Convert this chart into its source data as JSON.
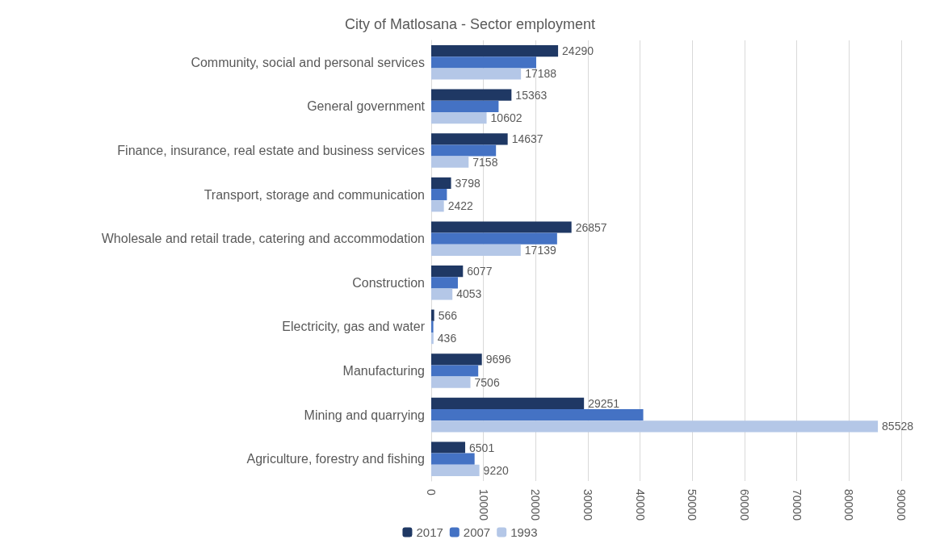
{
  "chart_data": {
    "type": "bar",
    "orientation": "horizontal",
    "title": "City of Matlosana - Sector employment",
    "categories": [
      "Community, social and personal services",
      "General government",
      "Finance, insurance, real estate and business services",
      "Transport, storage and communication",
      "Wholesale and retail trade, catering and accommodation",
      "Construction",
      "Electricity, gas and water",
      "Manufacturing",
      "Mining and quarrying",
      "Agriculture, forestry and fishing"
    ],
    "series": [
      {
        "name": "2017",
        "color": "#1f3864",
        "values": [
          24290,
          15363,
          14637,
          3798,
          26857,
          6077,
          566,
          9696,
          29251,
          6501
        ],
        "value_labels": [
          "24290",
          "15363",
          "14637",
          "3798",
          "26857",
          "6077",
          "566",
          "9696",
          "29251",
          "6501"
        ]
      },
      {
        "name": "2007",
        "color": "#4472c4",
        "values": [
          20100,
          12900,
          12400,
          3000,
          24100,
          5100,
          400,
          9000,
          40600,
          8300
        ]
      },
      {
        "name": "1993",
        "color": "#b4c7e7",
        "values": [
          17188,
          10602,
          7158,
          2422,
          17139,
          4053,
          436,
          7506,
          85528,
          9220
        ],
        "value_labels": [
          "17188",
          "10602",
          "7158",
          "2422",
          "17139",
          "4053",
          "436",
          "7506",
          "85528",
          "9220"
        ]
      }
    ],
    "xlim": [
      0,
      90000
    ],
    "xticks": [
      0,
      10000,
      20000,
      30000,
      40000,
      50000,
      60000,
      70000,
      80000,
      90000
    ],
    "grid": "x",
    "legend": "bottom"
  }
}
